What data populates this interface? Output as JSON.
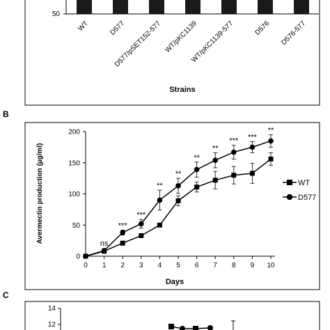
{
  "chart_data": [
    {
      "type": "bar",
      "title": "",
      "xlabel": "Strains",
      "ylabel": "",
      "y_tick_labels": [
        "50"
      ],
      "categories": [
        "WT",
        "D577",
        "D577/pSET152-577",
        "WT/pKC1139",
        "WT/pKC1139-577",
        "D576",
        "D576-577"
      ]
    },
    {
      "panel": "B",
      "type": "line",
      "xlabel": "Days",
      "ylabel": "Avermectin production (µg/ml)",
      "xlim": [
        0,
        10
      ],
      "ylim": [
        0,
        200
      ],
      "x_ticks": [
        0,
        1,
        2,
        3,
        4,
        5,
        6,
        7,
        8,
        9,
        10
      ],
      "y_ticks": [
        0,
        50,
        100,
        150,
        200
      ],
      "legend_position": "right",
      "series": [
        {
          "name": "WT",
          "marker": "square",
          "x": [
            0,
            1,
            2,
            3,
            4,
            5,
            6,
            7,
            8,
            9,
            10
          ],
          "y": [
            0,
            8,
            21,
            33,
            50,
            89,
            111,
            122,
            130,
            133,
            156
          ],
          "err": [
            0,
            1,
            2,
            3,
            3,
            8,
            8,
            14,
            14,
            16,
            10
          ]
        },
        {
          "name": "D577",
          "marker": "circle",
          "x": [
            0,
            1,
            2,
            3,
            4,
            5,
            6,
            7,
            8,
            9,
            10
          ],
          "y": [
            0,
            9,
            38,
            52,
            90,
            113,
            139,
            154,
            167,
            175,
            185
          ],
          "err": [
            0,
            1,
            4,
            7,
            16,
            12,
            12,
            12,
            11,
            9,
            10
          ]
        }
      ],
      "annotations": [
        {
          "x": 1,
          "text": "ns"
        },
        {
          "x": 2,
          "text": "***"
        },
        {
          "x": 3,
          "text": "***"
        },
        {
          "x": 4,
          "text": "**"
        },
        {
          "x": 5,
          "text": "**"
        },
        {
          "x": 6,
          "text": "**"
        },
        {
          "x": 7,
          "text": "**"
        },
        {
          "x": 8,
          "text": "***"
        },
        {
          "x": 9,
          "text": "***"
        },
        {
          "x": 10,
          "text": "**"
        }
      ]
    },
    {
      "panel": "C",
      "type": "line",
      "y_ticks": [
        12,
        14
      ]
    }
  ]
}
